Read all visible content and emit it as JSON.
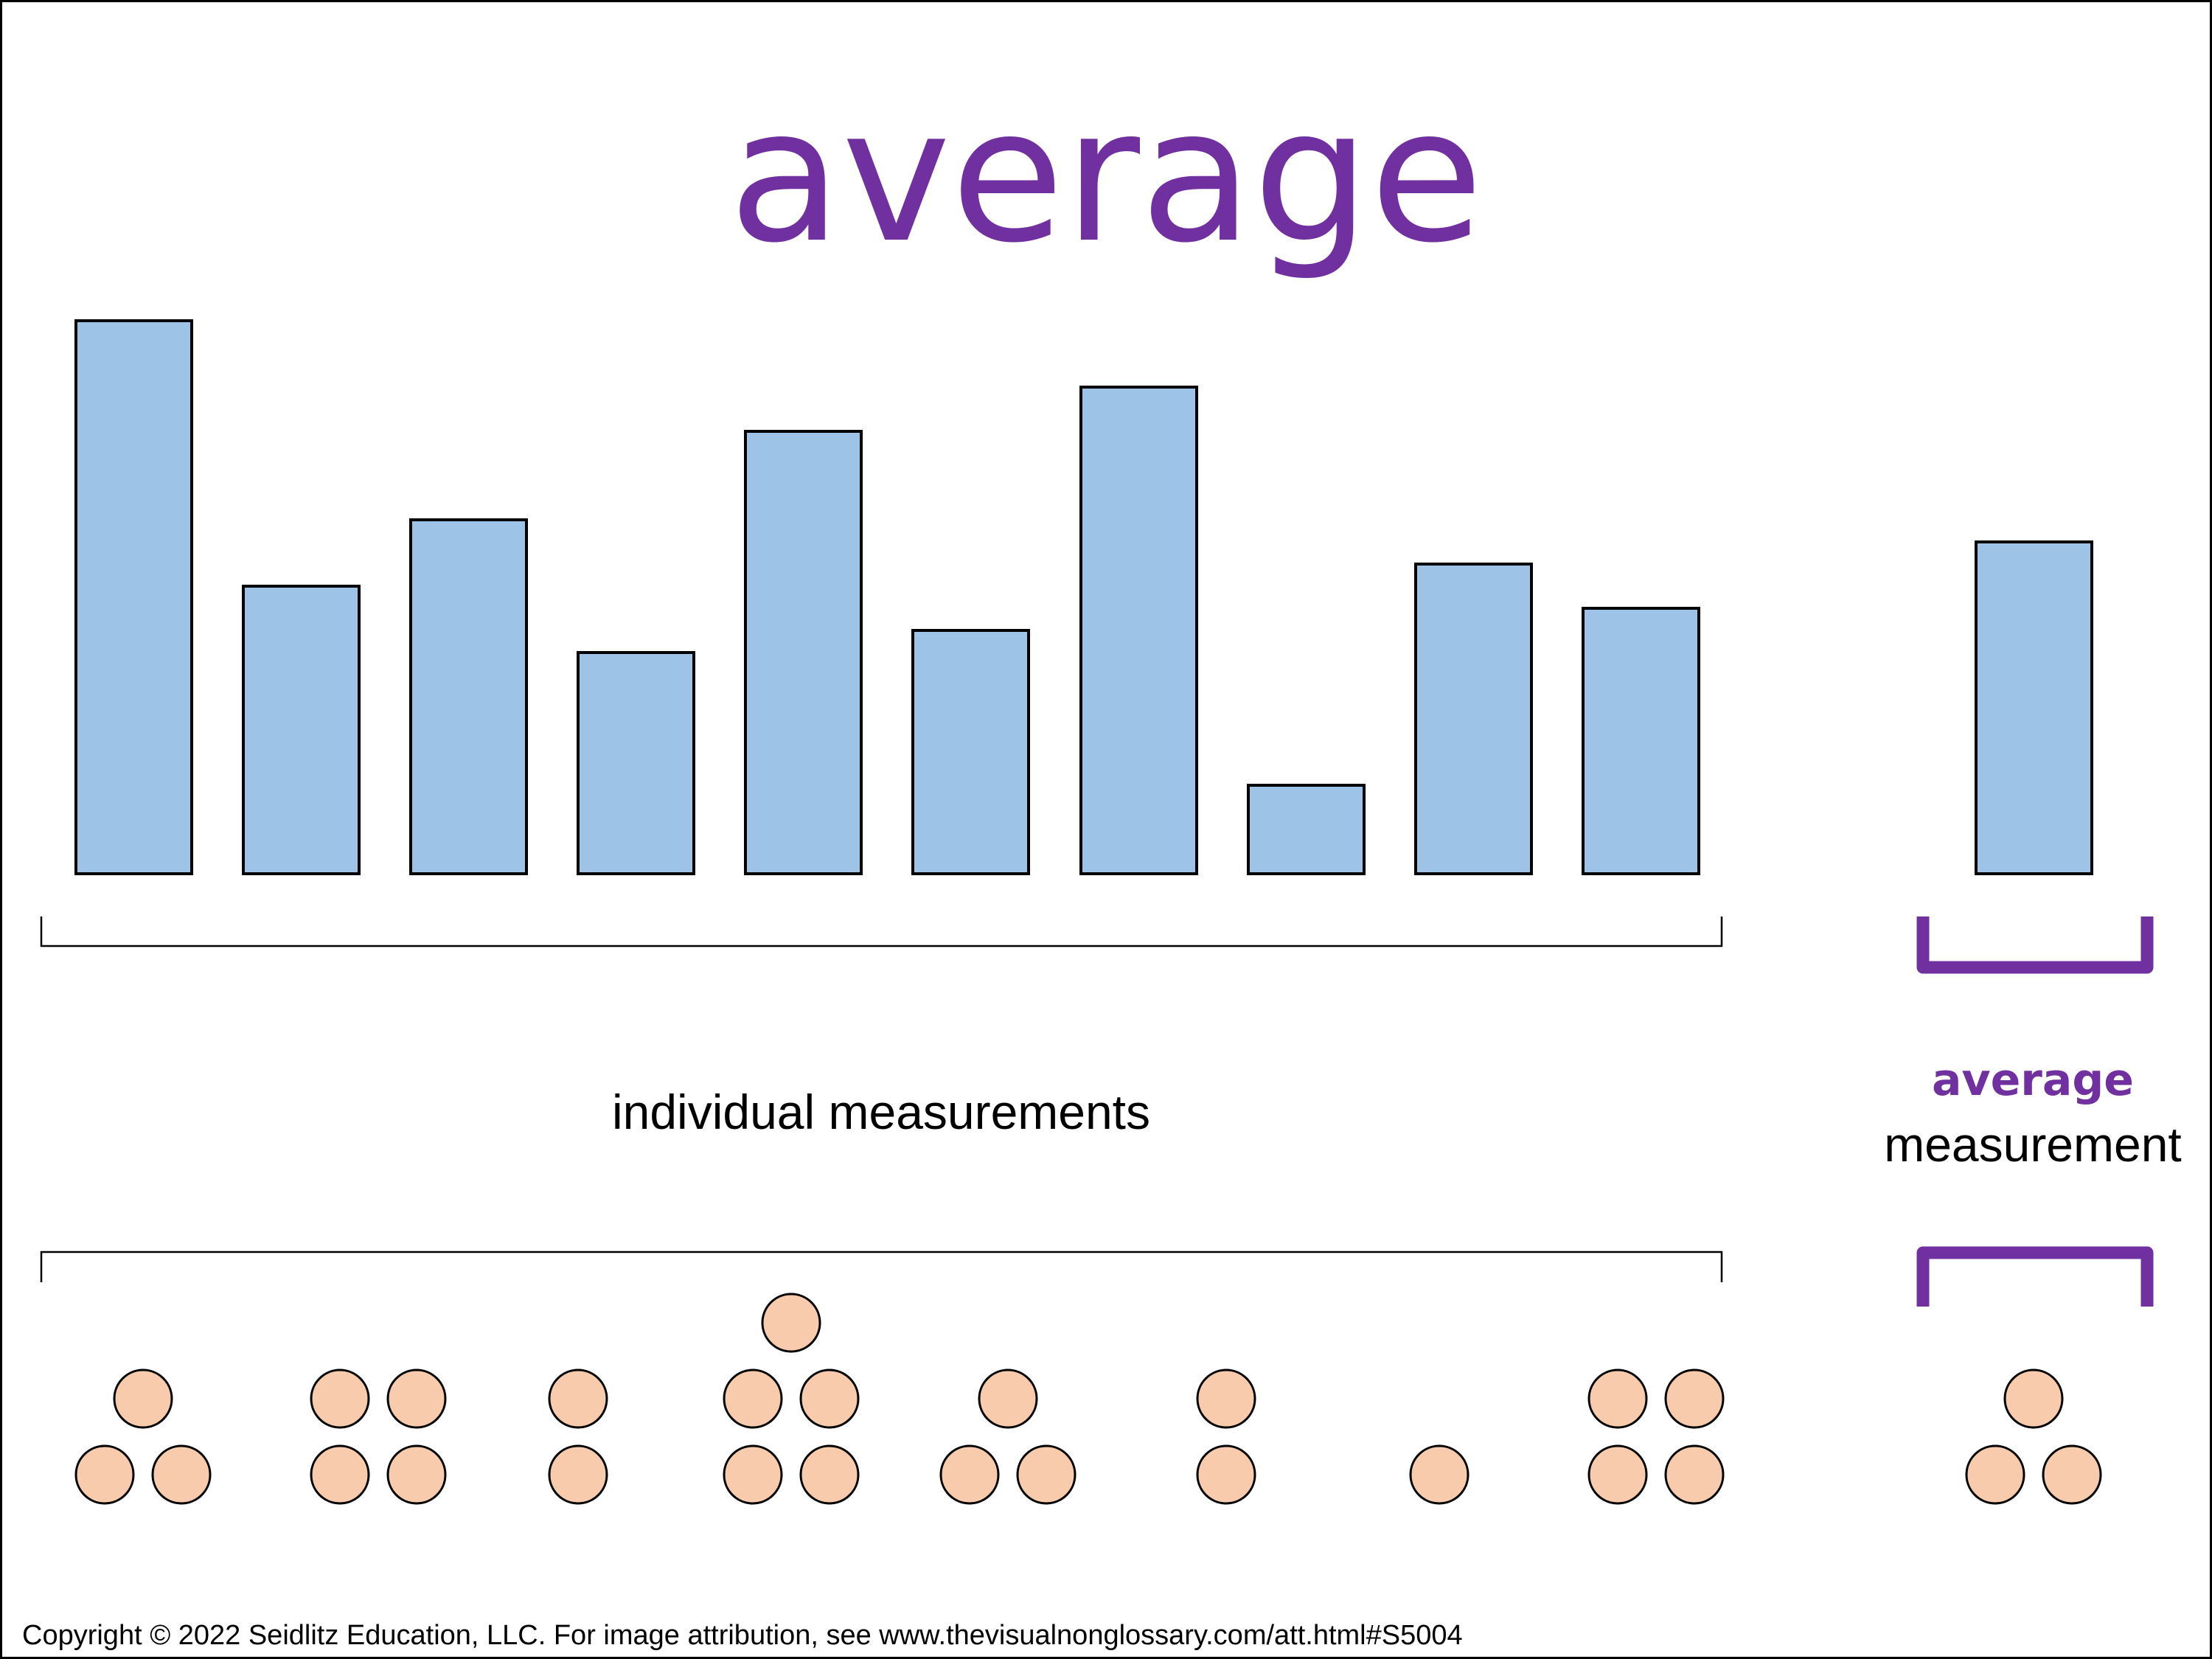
{
  "title": "average",
  "labels": {
    "individual": "individual measurements",
    "average_word": "average",
    "measurement_word": "measurement"
  },
  "copyright": "Copyright © 2022 Seidlitz Education, LLC.  For image attribution, see www.thevisualnonglossary.com/att.html#S5004",
  "colors": {
    "title": "#7030a0",
    "bar_fill": "#9dc3e6",
    "counter_fill": "#f8cbad",
    "stroke": "#000000"
  },
  "individual_bar_heights": [
    10,
    5.2,
    6.4,
    4,
    8,
    4.4,
    8.8,
    1.6,
    5.6,
    4.8
  ],
  "average_bar_height": 6,
  "individual_counter_groups": [
    3,
    4,
    2,
    5,
    3,
    2,
    1,
    4
  ],
  "average_counter_group": 3,
  "icons": {
    "bracket": "brace-bracket",
    "counter": "circle-counter"
  }
}
